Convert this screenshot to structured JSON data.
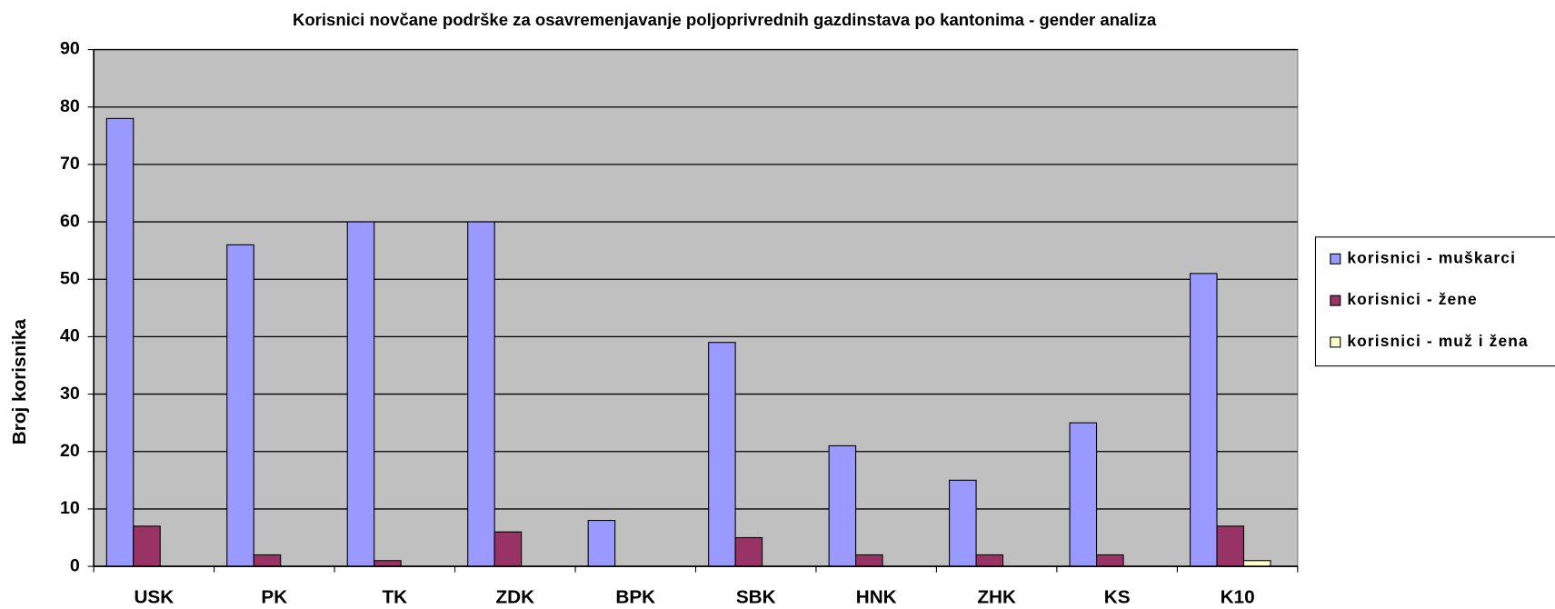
{
  "chart_data": {
    "type": "bar",
    "title": "Korisnici novčane podrške za osavremenjavanje poljoprivrednih gazdinstava po kantonima - gender analiza",
    "y_label": "Broj korisnika",
    "categories": [
      "USK",
      "PK",
      "TK",
      "ZDK",
      "BPK",
      "SBK",
      "HNK",
      "ZHK",
      "KS",
      "K10"
    ],
    "series": [
      {
        "name": "korisnici - muškarci",
        "color": "#9999ff",
        "values": [
          78,
          56,
          60,
          60,
          8,
          39,
          21,
          15,
          25,
          51
        ]
      },
      {
        "name": "korisnici - žene",
        "color": "#993366",
        "values": [
          7,
          2,
          1,
          6,
          0,
          5,
          2,
          2,
          2,
          7
        ]
      },
      {
        "name": "korisnici - muž i žena",
        "color": "#ffffcc",
        "values": [
          0,
          0,
          0,
          0,
          0,
          0,
          0,
          0,
          0,
          1
        ]
      }
    ],
    "ylim": [
      0,
      90
    ],
    "yticks": [
      0,
      10,
      20,
      30,
      40,
      50,
      60,
      70,
      80,
      90
    ],
    "grid": true,
    "plot_background": "#c0c0c0",
    "legend": "right"
  }
}
